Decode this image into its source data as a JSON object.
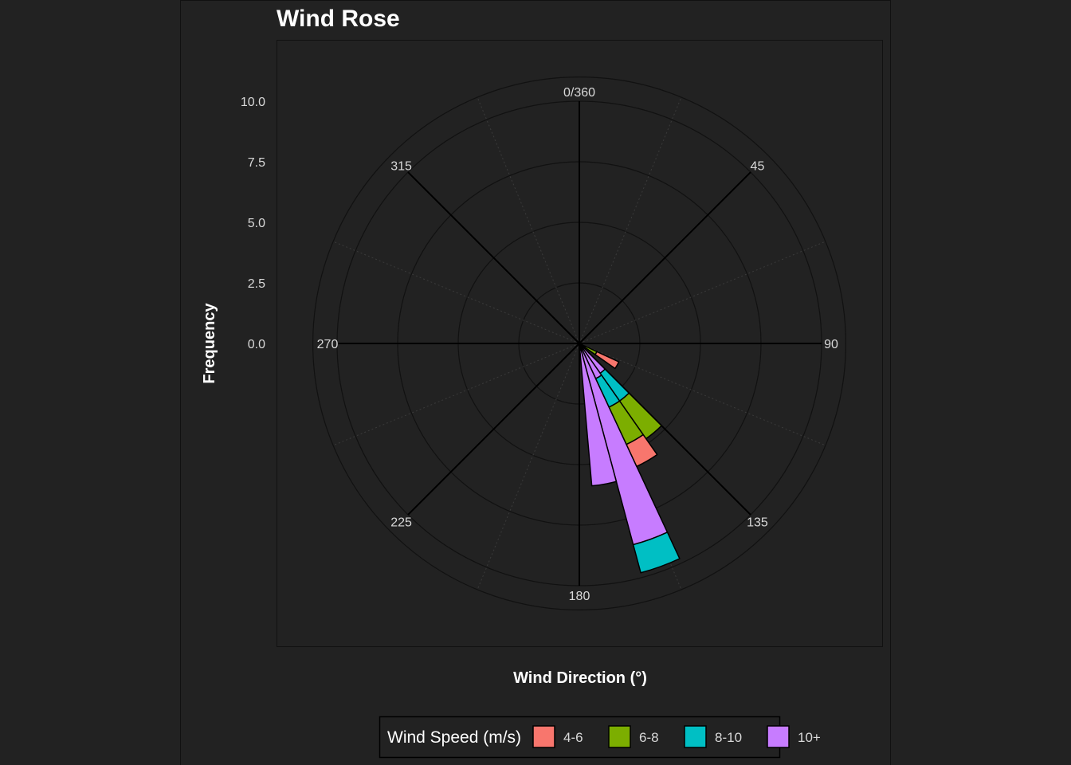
{
  "chart_data": {
    "type": "wind-rose",
    "title": "Wind Rose",
    "xlabel": "Wind Direction (°)",
    "ylabel": "Frequency",
    "radial_ticks": [
      "0.0",
      "2.5",
      "5.0",
      "7.5",
      "10.0"
    ],
    "radial_tick_values": [
      0,
      2.5,
      5,
      7.5,
      10
    ],
    "rlim": [
      0,
      11
    ],
    "angle_ticks": [
      {
        "angle": 0,
        "label": "0/360"
      },
      {
        "angle": 45,
        "label": "45"
      },
      {
        "angle": 90,
        "label": "90"
      },
      {
        "angle": 135,
        "label": "135"
      },
      {
        "angle": 180,
        "label": "180"
      },
      {
        "angle": 225,
        "label": "225"
      },
      {
        "angle": 270,
        "label": "270"
      },
      {
        "angle": 315,
        "label": "315"
      }
    ],
    "sector_width_deg": 10,
    "legend": {
      "title": "Wind Speed (m/s)",
      "position": "bottom",
      "items": [
        {
          "label": "4-6",
          "color": "#F8766D"
        },
        {
          "label": "6-8",
          "color": "#7CAE00"
        },
        {
          "label": "8-10",
          "color": "#00BFC4"
        },
        {
          "label": "10+",
          "color": "#C77CFF"
        }
      ]
    },
    "series": [
      {
        "name": "4-6",
        "color": "#F8766D",
        "values": [
          {
            "direction": 120,
            "base": 0.8,
            "top": 1.8
          },
          {
            "direction": 150,
            "base": 4.6,
            "top": 5.6
          }
        ]
      },
      {
        "name": "6-8",
        "color": "#7CAE00",
        "values": [
          {
            "direction": 120,
            "base": 0,
            "top": 0.8
          },
          {
            "direction": 140,
            "base": 2.9,
            "top": 4.8
          },
          {
            "direction": 150,
            "base": 2.9,
            "top": 4.6
          }
        ]
      },
      {
        "name": "8-10",
        "color": "#00BFC4",
        "values": [
          {
            "direction": 140,
            "base": 1.5,
            "top": 2.9
          },
          {
            "direction": 150,
            "base": 1.6,
            "top": 2.9
          },
          {
            "direction": 160,
            "base": 8.6,
            "top": 9.8
          }
        ]
      },
      {
        "name": "10+",
        "color": "#C77CFF",
        "values": [
          {
            "direction": 140,
            "base": 0,
            "top": 1.5
          },
          {
            "direction": 150,
            "base": 0,
            "top": 1.6
          },
          {
            "direction": 160,
            "base": 0,
            "top": 8.6
          },
          {
            "direction": 170,
            "base": 0,
            "top": 5.9
          }
        ]
      }
    ]
  },
  "colors": {
    "background": "#222222",
    "panel_border": "#111111",
    "grid": "#111111",
    "major_axis": "#000000",
    "bar_stroke": "#000000",
    "text": "#FFFFFF",
    "tick_text": "#D9D9D9"
  }
}
